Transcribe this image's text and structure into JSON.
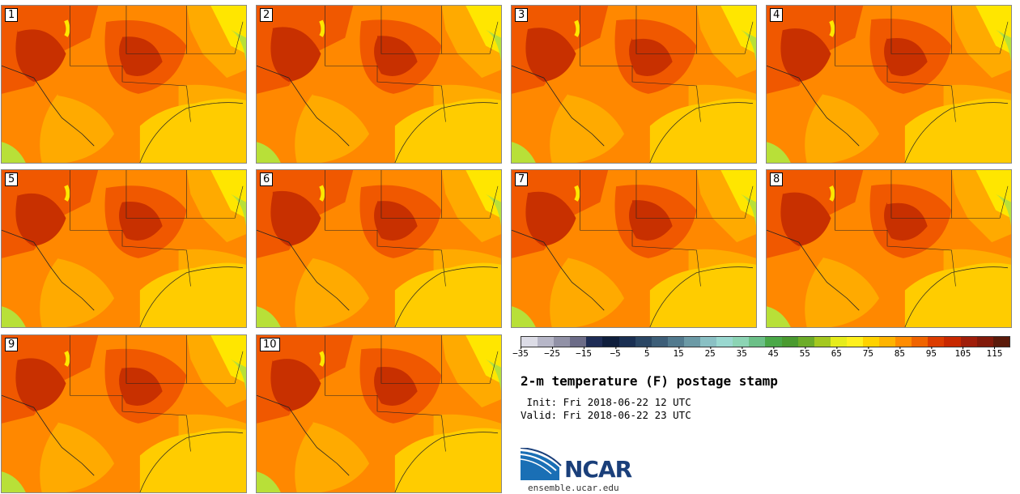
{
  "panels": [
    {
      "label": "1"
    },
    {
      "label": "2"
    },
    {
      "label": "3"
    },
    {
      "label": "4"
    },
    {
      "label": "5"
    },
    {
      "label": "6"
    },
    {
      "label": "7"
    },
    {
      "label": "8"
    },
    {
      "label": "9"
    },
    {
      "label": "10"
    }
  ],
  "colorbar": {
    "colors": [
      "#dcdce6",
      "#b7b7c8",
      "#9191a6",
      "#6c6c88",
      "#1e2c55",
      "#0f1e3c",
      "#1a2f52",
      "#2a4664",
      "#3d5e78",
      "#527a8e",
      "#6c9aa6",
      "#8ac0c4",
      "#9ad8d0",
      "#8cd4b4",
      "#6cc088",
      "#4aa848",
      "#4a9a30",
      "#6cac28",
      "#a4c820",
      "#e6ec1c",
      "#fff01e",
      "#ffd200",
      "#ffb400",
      "#ff8c00",
      "#f06400",
      "#dc3c00",
      "#c82800",
      "#a01e0a",
      "#821a0a",
      "#5a1a0a"
    ],
    "ticks": [
      "−35",
      "−25",
      "−15",
      "−5",
      "5",
      "15",
      "25",
      "35",
      "45",
      "55",
      "65",
      "75",
      "85",
      "95",
      "105",
      "115"
    ]
  },
  "title": "2-m temperature (F) postage stamp",
  "init_text": " Init: Fri 2018-06-22 12 UTC",
  "valid_text": "Valid: Fri 2018-06-22 23 UTC",
  "logo_text": "NCAR",
  "site_text": "ensemble.ucar.edu",
  "map_colors": {
    "gulf": "#ffcc00",
    "base": "#ff8800",
    "hot": "#f05800",
    "hottest": "#c83000",
    "warm": "#ffaa00",
    "cool": "#ffe600",
    "green": "#b8e038",
    "border": "#222222"
  }
}
